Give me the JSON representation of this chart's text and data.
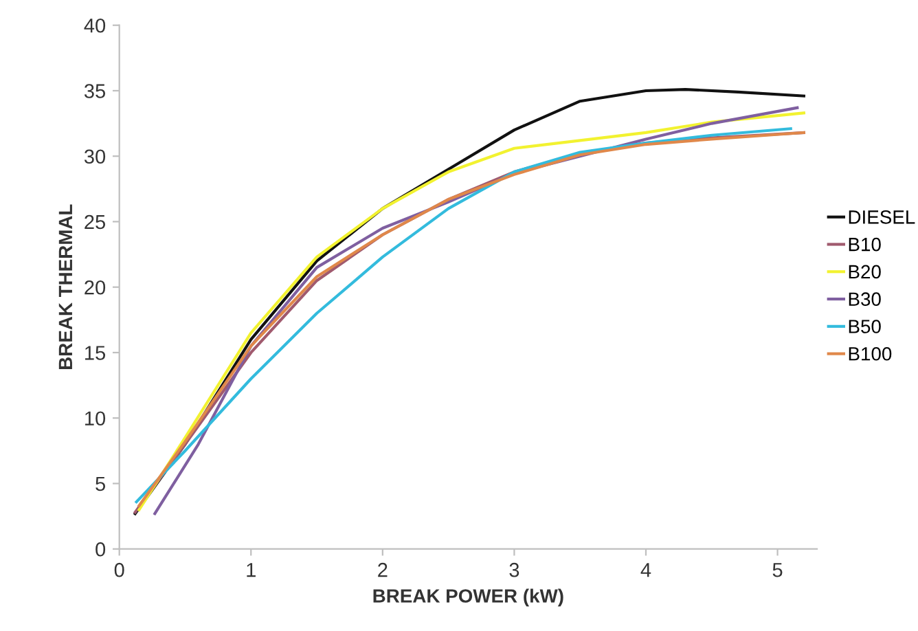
{
  "chart_data": {
    "type": "line",
    "xlabel": "BREAK POWER (kW)",
    "ylabel": "BREAK THERMAL",
    "xlim": [
      0,
      5.3
    ],
    "ylim": [
      0,
      40
    ],
    "xticks": [
      0,
      1,
      2,
      3,
      4,
      5
    ],
    "yticks": [
      0,
      5,
      10,
      15,
      20,
      25,
      30,
      35,
      40
    ],
    "grid": false,
    "legend": "right",
    "marker": "none",
    "line_style": "solid",
    "series": [
      {
        "name": "DIESEL",
        "color": "#111111",
        "x": [
          0.12,
          0.5,
          1,
          1.5,
          2,
          2.5,
          3,
          3.5,
          4,
          4.3,
          4.7,
          5.2
        ],
        "values": [
          2.7,
          8,
          16,
          22,
          26,
          29,
          32,
          34.2,
          35,
          35.1,
          34.9,
          34.6
        ]
      },
      {
        "name": "B10",
        "color": "#a05a6e",
        "x": [
          0.12,
          0.5,
          1,
          1.5,
          2,
          2.5,
          3,
          3.5,
          4,
          4.5,
          5.2
        ],
        "values": [
          2.8,
          8,
          15,
          20.5,
          24,
          26.7,
          28.8,
          30.2,
          31,
          31.4,
          31.8
        ]
      },
      {
        "name": "B20",
        "color": "#f2f230",
        "x": [
          0.15,
          0.5,
          1,
          1.5,
          2,
          2.5,
          3,
          3.5,
          4,
          4.5,
          5.2
        ],
        "values": [
          3,
          8.5,
          16.5,
          22.3,
          26,
          28.8,
          30.6,
          31.2,
          31.8,
          32.6,
          33.3
        ]
      },
      {
        "name": "B30",
        "color": "#7f5fa0",
        "x": [
          0.27,
          0.6,
          1,
          1.5,
          2,
          2.5,
          3,
          3.5,
          4,
          4.5,
          5.15
        ],
        "values": [
          2.7,
          8,
          15.5,
          21.5,
          24.5,
          26.5,
          28.7,
          30,
          31.3,
          32.5,
          33.7
        ]
      },
      {
        "name": "B50",
        "color": "#33bbdd",
        "x": [
          0.13,
          0.5,
          1,
          1.5,
          2,
          2.5,
          3,
          3.5,
          4,
          4.5,
          5.1
        ],
        "values": [
          3.6,
          7.5,
          13,
          18,
          22.3,
          26,
          28.8,
          30.3,
          31,
          31.6,
          32.1
        ]
      },
      {
        "name": "B100",
        "color": "#e0884a",
        "x": [
          0.15,
          0.5,
          1,
          1.5,
          2,
          2.5,
          3,
          3.5,
          4,
          4.5,
          5.2
        ],
        "values": [
          3.3,
          8.2,
          15.5,
          20.8,
          24,
          26.7,
          28.6,
          30.1,
          30.9,
          31.3,
          31.8
        ]
      }
    ]
  }
}
